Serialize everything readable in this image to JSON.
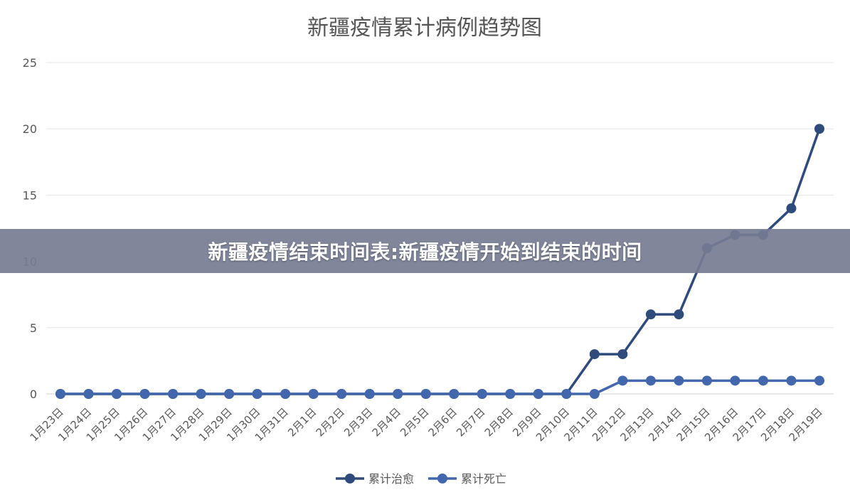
{
  "overlay": {
    "text": "新疆疫情结束时间表:新疆疫情开始到结束的时间"
  },
  "chart_data": {
    "type": "line",
    "title": "新疆疫情累计病例趋势图",
    "xlabel": "",
    "ylabel": "",
    "ylim": [
      0,
      25
    ],
    "yticks": [
      "0",
      "5",
      "10",
      "15",
      "20",
      "25"
    ],
    "grid": true,
    "legend_position": "bottom",
    "categories": [
      "1月23日",
      "1月24日",
      "1月25日",
      "1月26日",
      "1月27日",
      "1月28日",
      "1月29日",
      "1月30日",
      "1月31日",
      "2月1日",
      "2月2日",
      "2月3日",
      "2月4日",
      "2月5日",
      "2月6日",
      "2月7日",
      "2月8日",
      "2月9日",
      "2月10日",
      "2月11日",
      "2月12日",
      "2月13日",
      "2月14日",
      "2月15日",
      "2月16日",
      "2月17日",
      "2月18日",
      "2月19日"
    ],
    "series": [
      {
        "name": "累计治愈",
        "color": "#2f4b7c",
        "values": [
          0,
          0,
          0,
          0,
          0,
          0,
          0,
          0,
          0,
          0,
          0,
          0,
          0,
          0,
          0,
          0,
          0,
          0,
          0,
          3,
          3,
          6,
          6,
          11,
          12,
          12,
          14,
          20
        ]
      },
      {
        "name": "累计死亡",
        "color": "#4267ac",
        "values": [
          0,
          0,
          0,
          0,
          0,
          0,
          0,
          0,
          0,
          0,
          0,
          0,
          0,
          0,
          0,
          0,
          0,
          0,
          0,
          0,
          1,
          1,
          1,
          1,
          1,
          1,
          1,
          1
        ]
      }
    ]
  }
}
